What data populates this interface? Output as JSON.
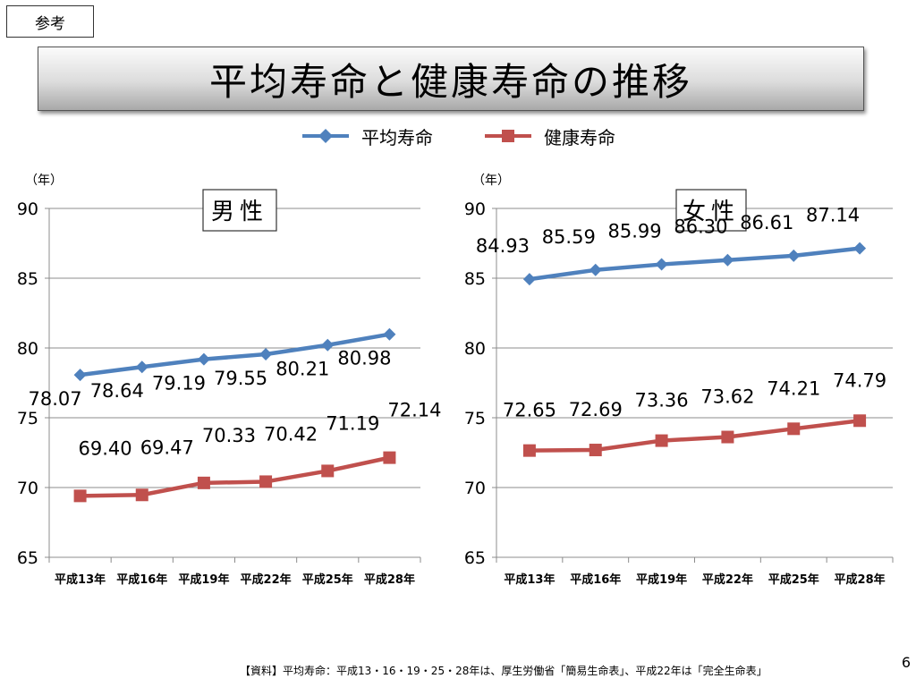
{
  "header": {
    "tag": "参考",
    "title": "平均寿命と健康寿命の推移"
  },
  "legend": {
    "items": [
      {
        "label": "平均寿命",
        "color": "#4f81bd",
        "marker": "diamond"
      },
      {
        "label": "健康寿命",
        "color": "#c0504d",
        "marker": "square"
      }
    ]
  },
  "chart_data": [
    {
      "type": "line",
      "title": "男性",
      "unit_label": "（年）",
      "categories": [
        "平成13年",
        "平成16年",
        "平成19年",
        "平成22年",
        "平成25年",
        "平成28年"
      ],
      "yticks": [
        "90",
        "85",
        "80",
        "75",
        "70",
        "65"
      ],
      "ylim": [
        65,
        90
      ],
      "grid": true,
      "series": [
        {
          "name": "平均寿命",
          "color": "#4f81bd",
          "marker": "diamond",
          "values": [
            78.07,
            78.64,
            79.19,
            79.55,
            80.21,
            80.98
          ],
          "labels": [
            "78.07",
            "78.64",
            "79.19",
            "79.55",
            "80.21",
            "80.98"
          ]
        },
        {
          "name": "健康寿命",
          "color": "#c0504d",
          "marker": "square",
          "values": [
            69.4,
            69.47,
            70.33,
            70.42,
            71.19,
            72.14
          ],
          "labels": [
            "69.40",
            "69.47",
            "70.33",
            "70.42",
            "71.19",
            "72.14"
          ]
        }
      ]
    },
    {
      "type": "line",
      "title": "女性",
      "unit_label": "（年）",
      "categories": [
        "平成13年",
        "平成16年",
        "平成19年",
        "平成22年",
        "平成25年",
        "平成28年"
      ],
      "yticks": [
        "90",
        "85",
        "80",
        "75",
        "70",
        "65"
      ],
      "ylim": [
        65,
        90
      ],
      "grid": true,
      "series": [
        {
          "name": "平均寿命",
          "color": "#4f81bd",
          "marker": "diamond",
          "values": [
            84.93,
            85.59,
            85.99,
            86.3,
            86.61,
            87.14
          ],
          "labels": [
            "84.93",
            "85.59",
            "85.99",
            "86.30",
            "86.61",
            "87.14"
          ]
        },
        {
          "name": "健康寿命",
          "color": "#c0504d",
          "marker": "square",
          "values": [
            72.65,
            72.69,
            73.36,
            73.62,
            74.21,
            74.79
          ],
          "labels": [
            "72.65",
            "72.69",
            "73.36",
            "73.62",
            "74.21",
            "74.79"
          ]
        }
      ]
    }
  ],
  "footer": {
    "source": "【資料】平均寿命：平成13・16・19・25・28年は、厚生労働省「簡易生命表」、平成22年は「完全生命表」",
    "page_number": "6"
  }
}
